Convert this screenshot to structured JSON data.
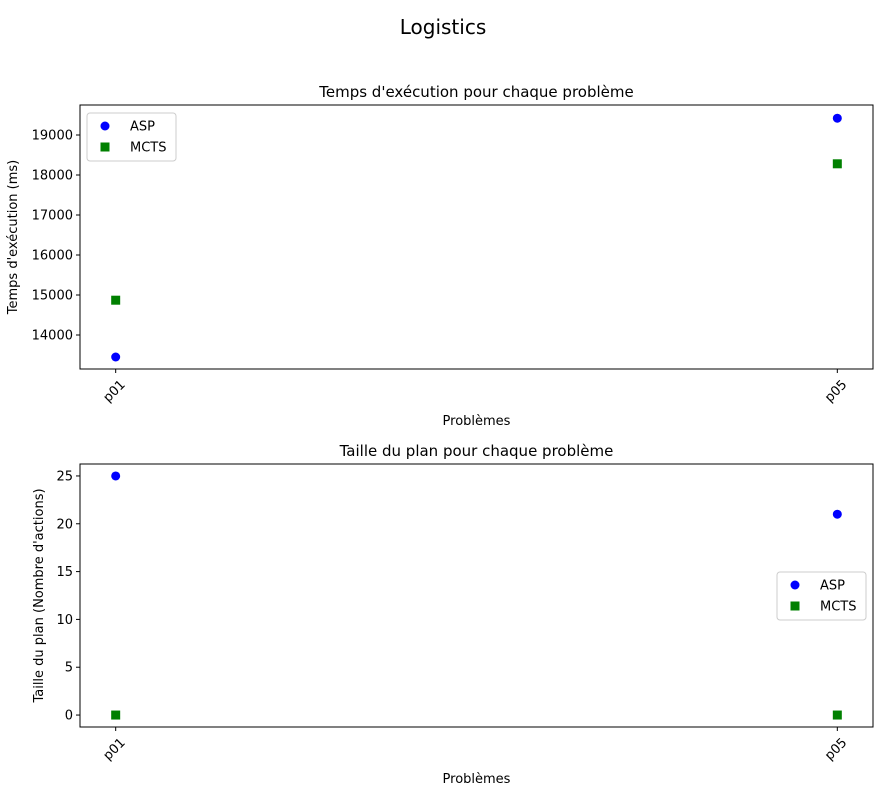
{
  "figure": {
    "suptitle": "Logistics"
  },
  "chart_data": [
    {
      "type": "scatter",
      "title": "Temps d'exécution pour chaque problème",
      "xlabel": "Problèmes",
      "ylabel": "Temps d'exécution (ms)",
      "categories": [
        "p01",
        "p05"
      ],
      "ylim": [
        13150,
        19750
      ],
      "yticks": [
        14000,
        15000,
        16000,
        17000,
        18000,
        19000
      ],
      "legend": "top-left",
      "series": [
        {
          "name": "ASP",
          "values": [
            13450,
            19420
          ],
          "color": "#0000ff",
          "marker": "circle"
        },
        {
          "name": "MCTS",
          "values": [
            14870,
            18280
          ],
          "color": "#008000",
          "marker": "square"
        }
      ]
    },
    {
      "type": "scatter",
      "title": "Taille du plan pour chaque problème",
      "xlabel": "Problèmes",
      "ylabel": "Taille du plan (Nombre d'actions)",
      "categories": [
        "p01",
        "p05"
      ],
      "ylim": [
        -1.25,
        26.25
      ],
      "yticks": [
        0,
        5,
        10,
        15,
        20,
        25
      ],
      "legend": "center-right",
      "series": [
        {
          "name": "ASP",
          "values": [
            25,
            21
          ],
          "color": "#0000ff",
          "marker": "circle"
        },
        {
          "name": "MCTS",
          "values": [
            0,
            0
          ],
          "color": "#008000",
          "marker": "square"
        }
      ]
    }
  ]
}
